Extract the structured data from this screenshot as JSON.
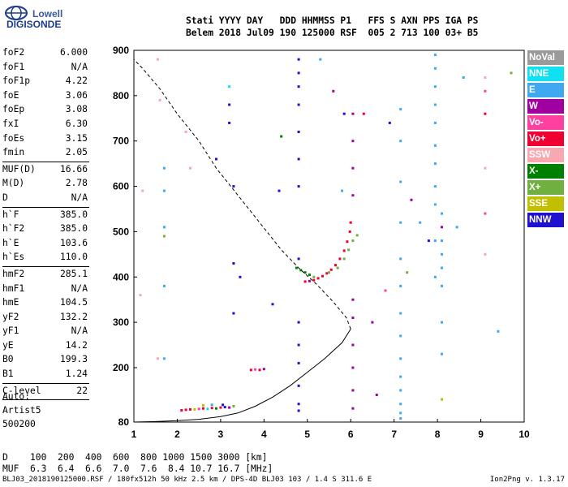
{
  "logo": {
    "line1": "Lowell",
    "line2": "DIGISONDE"
  },
  "header": {
    "labels": "Stati YYYY DAY   DDD HHMMSS P1   FFS S AXN PPS IGA PS",
    "values": "Belem 2018 Jul09 190 125000 RSF  005 2 713 100 03+ B5"
  },
  "params": [
    {
      "k": "foF2",
      "v": "6.000"
    },
    {
      "k": "foF1",
      "v": "N/A"
    },
    {
      "k": "foF1p",
      "v": "4.22"
    },
    {
      "k": "foE",
      "v": "3.06"
    },
    {
      "k": "foEp",
      "v": "3.08"
    },
    {
      "k": "fxI",
      "v": "6.30"
    },
    {
      "k": "foEs",
      "v": "3.15"
    },
    {
      "k": "fmin",
      "v": "2.05"
    },
    {
      "sep": true
    },
    {
      "k": "MUF(D)",
      "v": "16.66"
    },
    {
      "k": "M(D)",
      "v": "2.78"
    },
    {
      "k": "D",
      "v": "N/A"
    },
    {
      "sep": true
    },
    {
      "k": "h`F",
      "v": "385.0"
    },
    {
      "k": "h`F2",
      "v": "385.0"
    },
    {
      "k": "h`E",
      "v": "103.6"
    },
    {
      "k": "h`Es",
      "v": "110.0"
    },
    {
      "sep": true
    },
    {
      "k": "hmF2",
      "v": "285.1"
    },
    {
      "k": "hmF1",
      "v": "N/A"
    },
    {
      "k": "hmE",
      "v": "104.5"
    },
    {
      "k": "yF2",
      "v": "132.2"
    },
    {
      "k": "yF1",
      "v": "N/A"
    },
    {
      "k": "yE",
      "v": "14.2"
    },
    {
      "k": "B0",
      "v": "199.3"
    },
    {
      "k": "B1",
      "v": "1.24"
    },
    {
      "sep": true
    },
    {
      "k": "C-level",
      "v": "22"
    },
    {
      "sep": true
    }
  ],
  "auto": {
    "line1": "Auto:",
    "line2": "Artist5",
    "line3": "500200"
  },
  "legend": [
    {
      "name": "NoVal",
      "color": "#9a9a9a"
    },
    {
      "name": "NNE",
      "color": "#10e0f0"
    },
    {
      "name": "E",
      "color": "#40a8f0"
    },
    {
      "name": "W",
      "color": "#a000a0"
    },
    {
      "name": "Vo-",
      "color": "#ff40a0"
    },
    {
      "name": "Vo+",
      "color": "#f00030"
    },
    {
      "name": "SSW",
      "color": "#f8a8b0"
    },
    {
      "name": "X-",
      "color": "#008000"
    },
    {
      "name": "X+",
      "color": "#70b040"
    },
    {
      "name": "SSE",
      "color": "#c0c000"
    },
    {
      "name": "NNW",
      "color": "#2010d0"
    }
  ],
  "bottom": {
    "d_row": "D    100  200  400  600  800 1000 1500 3000 [km]",
    "muf_row": "MUF  6.3  6.4  6.6  7.0  7.6  8.4 10.7 16.7 [MHz]"
  },
  "footer": "BLJ03_2018190125000.RSF / 180fx512h 50 kHz 2.5 km / DPS-4D BLJ03 103 / 1.4 S 311.6 E",
  "version": "Ion2Png v. 1.3.17",
  "chart_data": {
    "type": "scatter",
    "xlim": [
      1,
      10
    ],
    "ylim": [
      80,
      900
    ],
    "xticks": [
      1,
      2,
      3,
      4,
      5,
      6,
      7,
      8,
      9,
      10
    ],
    "yticks": [
      80,
      200,
      300,
      400,
      500,
      600,
      700,
      800,
      900
    ],
    "profile_solid": [
      [
        1,
        80
      ],
      [
        1.5,
        81
      ],
      [
        2.0,
        83
      ],
      [
        2.5,
        86
      ],
      [
        3.0,
        92
      ],
      [
        3.4,
        100
      ],
      [
        3.8,
        115
      ],
      [
        4.2,
        135
      ],
      [
        4.6,
        160
      ],
      [
        5.0,
        190
      ],
      [
        5.4,
        220
      ],
      [
        5.8,
        255
      ],
      [
        6.0,
        285.1
      ]
    ],
    "profile_dashed": [
      [
        6.0,
        285.1
      ],
      [
        5.9,
        310
      ],
      [
        5.6,
        345
      ],
      [
        5.2,
        385
      ],
      [
        4.8,
        420
      ],
      [
        4.4,
        460
      ],
      [
        3.9,
        520
      ],
      [
        3.4,
        580
      ],
      [
        2.9,
        640
      ],
      [
        2.5,
        700
      ],
      [
        2.0,
        760
      ],
      [
        1.6,
        815
      ],
      [
        1.2,
        860
      ],
      [
        1.0,
        880
      ]
    ],
    "echoes": [
      {
        "x": 2.1,
        "y": 106,
        "c": "Vo+"
      },
      {
        "x": 2.2,
        "y": 107,
        "c": "Vo+"
      },
      {
        "x": 2.3,
        "y": 108,
        "c": "Vo+"
      },
      {
        "x": 2.4,
        "y": 108,
        "c": "SSE"
      },
      {
        "x": 2.5,
        "y": 109,
        "c": "Vo-"
      },
      {
        "x": 2.6,
        "y": 110,
        "c": "Vo+"
      },
      {
        "x": 2.7,
        "y": 109,
        "c": "NNE"
      },
      {
        "x": 2.8,
        "y": 111,
        "c": "Vo+"
      },
      {
        "x": 2.9,
        "y": 110,
        "c": "X-"
      },
      {
        "x": 3.0,
        "y": 112,
        "c": "Vo+"
      },
      {
        "x": 3.05,
        "y": 118,
        "c": "NNW"
      },
      {
        "x": 3.1,
        "y": 113,
        "c": "NNW"
      },
      {
        "x": 3.2,
        "y": 112,
        "c": "W"
      },
      {
        "x": 3.3,
        "y": 115,
        "c": "X+"
      },
      {
        "x": 2.8,
        "y": 118,
        "c": "E"
      },
      {
        "x": 2.6,
        "y": 117,
        "c": "SSE"
      },
      {
        "x": 3.7,
        "y": 195,
        "c": "Vo+"
      },
      {
        "x": 3.8,
        "y": 196,
        "c": "Vo-"
      },
      {
        "x": 3.9,
        "y": 195,
        "c": "Vo+"
      },
      {
        "x": 4.0,
        "y": 197,
        "c": "W"
      },
      {
        "x": 4.95,
        "y": 390,
        "c": "Vo+"
      },
      {
        "x": 5.05,
        "y": 391,
        "c": "W"
      },
      {
        "x": 5.15,
        "y": 393,
        "c": "Vo+"
      },
      {
        "x": 5.25,
        "y": 397,
        "c": "Vo+"
      },
      {
        "x": 5.35,
        "y": 402,
        "c": "Vo+"
      },
      {
        "x": 5.45,
        "y": 408,
        "c": "Vo+"
      },
      {
        "x": 5.55,
        "y": 416,
        "c": "Vo+"
      },
      {
        "x": 5.65,
        "y": 426,
        "c": "Vo+"
      },
      {
        "x": 5.75,
        "y": 440,
        "c": "Vo+"
      },
      {
        "x": 5.85,
        "y": 458,
        "c": "Vo+"
      },
      {
        "x": 5.92,
        "y": 478,
        "c": "Vo+"
      },
      {
        "x": 5.98,
        "y": 500,
        "c": "Vo+"
      },
      {
        "x": 6.0,
        "y": 520,
        "c": "Vo+"
      },
      {
        "x": 4.75,
        "y": 420,
        "c": "X-"
      },
      {
        "x": 4.85,
        "y": 415,
        "c": "X-"
      },
      {
        "x": 4.95,
        "y": 410,
        "c": "X-"
      },
      {
        "x": 5.05,
        "y": 405,
        "c": "X-"
      },
      {
        "x": 5.15,
        "y": 400,
        "c": "X+"
      },
      {
        "x": 5.5,
        "y": 410,
        "c": "X+"
      },
      {
        "x": 5.7,
        "y": 420,
        "c": "X+"
      },
      {
        "x": 5.85,
        "y": 440,
        "c": "X+"
      },
      {
        "x": 5.95,
        "y": 460,
        "c": "X+"
      },
      {
        "x": 6.05,
        "y": 480,
        "c": "X+"
      },
      {
        "x": 6.15,
        "y": 492,
        "c": "X+"
      },
      {
        "x": 4.8,
        "y": 880,
        "c": "NNW"
      },
      {
        "x": 4.8,
        "y": 850,
        "c": "NNW"
      },
      {
        "x": 4.8,
        "y": 820,
        "c": "NNW"
      },
      {
        "x": 4.8,
        "y": 780,
        "c": "NNW"
      },
      {
        "x": 4.8,
        "y": 720,
        "c": "NNW"
      },
      {
        "x": 4.8,
        "y": 660,
        "c": "NNW"
      },
      {
        "x": 4.8,
        "y": 600,
        "c": "NNW"
      },
      {
        "x": 4.8,
        "y": 440,
        "c": "NNW"
      },
      {
        "x": 4.8,
        "y": 300,
        "c": "NNW"
      },
      {
        "x": 4.8,
        "y": 250,
        "c": "NNW"
      },
      {
        "x": 4.8,
        "y": 210,
        "c": "NNW"
      },
      {
        "x": 4.8,
        "y": 160,
        "c": "NNW"
      },
      {
        "x": 4.8,
        "y": 120,
        "c": "NNW"
      },
      {
        "x": 4.8,
        "y": 105,
        "c": "NNW"
      },
      {
        "x": 6.05,
        "y": 760,
        "c": "W"
      },
      {
        "x": 6.05,
        "y": 700,
        "c": "W"
      },
      {
        "x": 6.05,
        "y": 640,
        "c": "W"
      },
      {
        "x": 6.05,
        "y": 580,
        "c": "W"
      },
      {
        "x": 6.05,
        "y": 350,
        "c": "W"
      },
      {
        "x": 6.05,
        "y": 310,
        "c": "W"
      },
      {
        "x": 6.05,
        "y": 250,
        "c": "W"
      },
      {
        "x": 6.05,
        "y": 200,
        "c": "W"
      },
      {
        "x": 6.05,
        "y": 150,
        "c": "W"
      },
      {
        "x": 6.05,
        "y": 110,
        "c": "W"
      },
      {
        "x": 7.15,
        "y": 770,
        "c": "E"
      },
      {
        "x": 7.15,
        "y": 700,
        "c": "E"
      },
      {
        "x": 7.15,
        "y": 610,
        "c": "E"
      },
      {
        "x": 7.15,
        "y": 520,
        "c": "E"
      },
      {
        "x": 7.15,
        "y": 440,
        "c": "E"
      },
      {
        "x": 7.15,
        "y": 380,
        "c": "E"
      },
      {
        "x": 7.15,
        "y": 320,
        "c": "E"
      },
      {
        "x": 7.15,
        "y": 270,
        "c": "E"
      },
      {
        "x": 7.15,
        "y": 220,
        "c": "E"
      },
      {
        "x": 7.15,
        "y": 180,
        "c": "E"
      },
      {
        "x": 7.15,
        "y": 150,
        "c": "E"
      },
      {
        "x": 7.15,
        "y": 120,
        "c": "E"
      },
      {
        "x": 7.15,
        "y": 100,
        "c": "E"
      },
      {
        "x": 7.15,
        "y": 88,
        "c": "E"
      },
      {
        "x": 7.95,
        "y": 890,
        "c": "E"
      },
      {
        "x": 7.95,
        "y": 860,
        "c": "E"
      },
      {
        "x": 7.95,
        "y": 820,
        "c": "E"
      },
      {
        "x": 7.95,
        "y": 780,
        "c": "E"
      },
      {
        "x": 7.95,
        "y": 740,
        "c": "E"
      },
      {
        "x": 7.95,
        "y": 690,
        "c": "E"
      },
      {
        "x": 7.95,
        "y": 650,
        "c": "E"
      },
      {
        "x": 7.95,
        "y": 600,
        "c": "E"
      },
      {
        "x": 7.95,
        "y": 560,
        "c": "E"
      },
      {
        "x": 7.95,
        "y": 480,
        "c": "E"
      },
      {
        "x": 7.95,
        "y": 400,
        "c": "E"
      },
      {
        "x": 8.1,
        "y": 540,
        "c": "E"
      },
      {
        "x": 8.1,
        "y": 510,
        "c": "W"
      },
      {
        "x": 8.1,
        "y": 480,
        "c": "E"
      },
      {
        "x": 8.1,
        "y": 450,
        "c": "E"
      },
      {
        "x": 8.1,
        "y": 420,
        "c": "E"
      },
      {
        "x": 8.1,
        "y": 380,
        "c": "E"
      },
      {
        "x": 8.1,
        "y": 300,
        "c": "E"
      },
      {
        "x": 8.1,
        "y": 230,
        "c": "E"
      },
      {
        "x": 8.1,
        "y": 130,
        "c": "SSE"
      },
      {
        "x": 9.1,
        "y": 840,
        "c": "SSW"
      },
      {
        "x": 9.1,
        "y": 810,
        "c": "Vo-"
      },
      {
        "x": 9.1,
        "y": 760,
        "c": "Vo+"
      },
      {
        "x": 9.1,
        "y": 640,
        "c": "SSW"
      },
      {
        "x": 9.1,
        "y": 540,
        "c": "Vo-"
      },
      {
        "x": 9.1,
        "y": 450,
        "c": "SSW"
      },
      {
        "x": 9.7,
        "y": 850,
        "c": "X+"
      },
      {
        "x": 9.4,
        "y": 280,
        "c": "E"
      },
      {
        "x": 1.55,
        "y": 880,
        "c": "SSW"
      },
      {
        "x": 1.6,
        "y": 790,
        "c": "SSW"
      },
      {
        "x": 1.7,
        "y": 640,
        "c": "E"
      },
      {
        "x": 1.7,
        "y": 590,
        "c": "E"
      },
      {
        "x": 1.7,
        "y": 510,
        "c": "E"
      },
      {
        "x": 1.7,
        "y": 490,
        "c": "X+"
      },
      {
        "x": 1.7,
        "y": 380,
        "c": "E"
      },
      {
        "x": 1.7,
        "y": 220,
        "c": "E"
      },
      {
        "x": 1.55,
        "y": 220,
        "c": "SSW"
      },
      {
        "x": 1.2,
        "y": 590,
        "c": "SSW"
      },
      {
        "x": 1.15,
        "y": 360,
        "c": "SSW"
      },
      {
        "x": 2.2,
        "y": 720,
        "c": "SSW"
      },
      {
        "x": 2.3,
        "y": 640,
        "c": "SSW"
      },
      {
        "x": 2.9,
        "y": 660,
        "c": "NNW"
      },
      {
        "x": 3.2,
        "y": 780,
        "c": "NNW"
      },
      {
        "x": 3.2,
        "y": 740,
        "c": "NNW"
      },
      {
        "x": 3.3,
        "y": 600,
        "c": "NNW"
      },
      {
        "x": 3.3,
        "y": 430,
        "c": "NNW"
      },
      {
        "x": 3.3,
        "y": 320,
        "c": "NNW"
      },
      {
        "x": 3.45,
        "y": 400,
        "c": "NNW"
      },
      {
        "x": 4.2,
        "y": 340,
        "c": "NNW"
      },
      {
        "x": 4.4,
        "y": 710,
        "c": "X-"
      },
      {
        "x": 4.35,
        "y": 590,
        "c": "NNW"
      },
      {
        "x": 5.6,
        "y": 810,
        "c": "W"
      },
      {
        "x": 5.85,
        "y": 760,
        "c": "NNW"
      },
      {
        "x": 5.8,
        "y": 590,
        "c": "E"
      },
      {
        "x": 6.3,
        "y": 760,
        "c": "Vo+"
      },
      {
        "x": 6.5,
        "y": 300,
        "c": "W"
      },
      {
        "x": 6.6,
        "y": 140,
        "c": "W"
      },
      {
        "x": 6.8,
        "y": 370,
        "c": "Vo-"
      },
      {
        "x": 6.9,
        "y": 740,
        "c": "NNW"
      },
      {
        "x": 7.3,
        "y": 410,
        "c": "X+"
      },
      {
        "x": 7.4,
        "y": 570,
        "c": "W"
      },
      {
        "x": 7.6,
        "y": 520,
        "c": "E"
      },
      {
        "x": 7.8,
        "y": 480,
        "c": "NNW"
      },
      {
        "x": 8.45,
        "y": 510,
        "c": "E"
      },
      {
        "x": 8.6,
        "y": 840,
        "c": "E"
      },
      {
        "x": 5.3,
        "y": 880,
        "c": "E"
      },
      {
        "x": 3.2,
        "y": 820,
        "c": "NNE"
      }
    ]
  }
}
